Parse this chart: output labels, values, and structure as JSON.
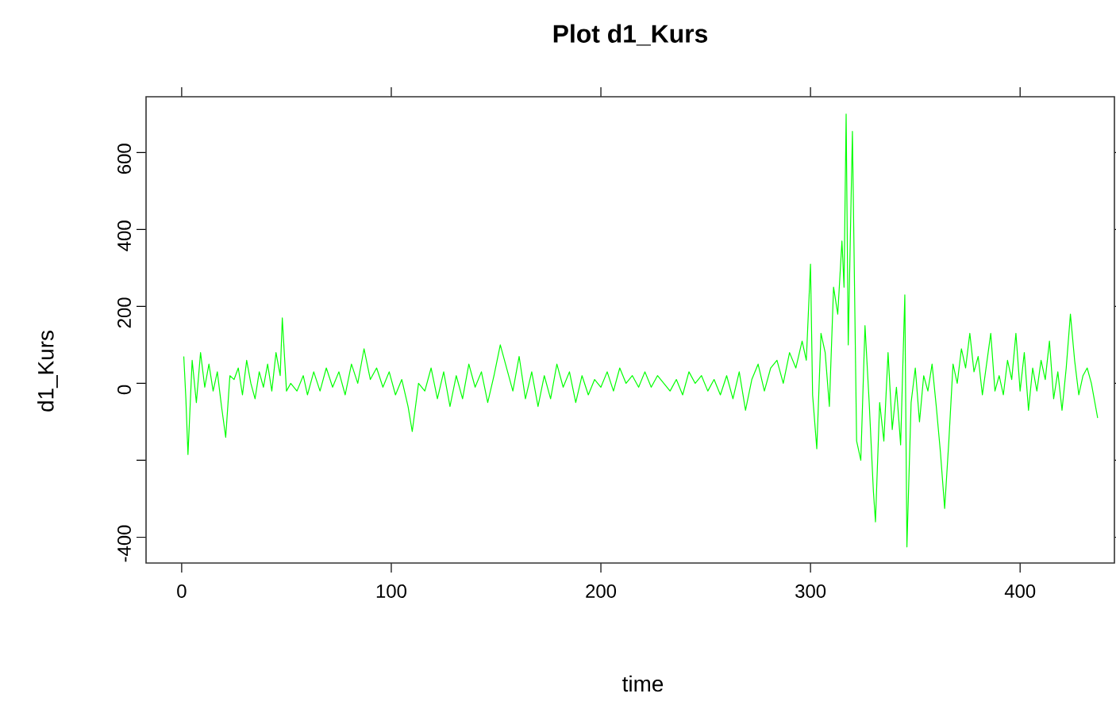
{
  "chart_data": {
    "type": "line",
    "title": "Plot d1_Kurs",
    "xlabel": "time",
    "ylabel": "d1_Kurs",
    "xlim": [
      -17,
      445
    ],
    "ylim": [
      -467,
      745
    ],
    "xticks": [
      0,
      100,
      200,
      300,
      400
    ],
    "yticks": [
      {
        "value": -400,
        "label": "-400"
      },
      {
        "value": -200,
        "label": null
      },
      0,
      200,
      400,
      600
    ],
    "series": [
      {
        "color": "#00ff00",
        "x": [
          1,
          2,
          3,
          5,
          7,
          9,
          11,
          13,
          15,
          17,
          19,
          21,
          23,
          25,
          27,
          29,
          31,
          33,
          35,
          37,
          39,
          41,
          43,
          45,
          47,
          48,
          50,
          52,
          55,
          58,
          60,
          63,
          66,
          69,
          72,
          75,
          78,
          81,
          84,
          87,
          90,
          93,
          96,
          99,
          102,
          105,
          108,
          110,
          113,
          116,
          119,
          122,
          125,
          128,
          131,
          134,
          137,
          140,
          143,
          146,
          149,
          152,
          155,
          158,
          161,
          164,
          167,
          170,
          173,
          176,
          179,
          182,
          185,
          188,
          191,
          194,
          197,
          200,
          203,
          206,
          209,
          212,
          215,
          218,
          221,
          224,
          227,
          230,
          233,
          236,
          239,
          242,
          245,
          248,
          251,
          254,
          257,
          260,
          263,
          266,
          269,
          272,
          275,
          278,
          281,
          284,
          287,
          290,
          293,
          296,
          298,
          300,
          301,
          303,
          305,
          307,
          309,
          311,
          313,
          315,
          316,
          317,
          318,
          320,
          322,
          324,
          326,
          328,
          330,
          331,
          333,
          335,
          337,
          339,
          341,
          343,
          345,
          346,
          348,
          350,
          352,
          354,
          356,
          358,
          360,
          362,
          364,
          366,
          368,
          370,
          372,
          374,
          376,
          378,
          380,
          382,
          384,
          386,
          388,
          390,
          392,
          394,
          396,
          398,
          400,
          402,
          404,
          406,
          408,
          410,
          412,
          414,
          416,
          418,
          420,
          422,
          424,
          426,
          428,
          430,
          432,
          434,
          437
        ],
        "values": [
          70,
          -40,
          -185,
          60,
          -50,
          80,
          -10,
          50,
          -20,
          30,
          -60,
          -140,
          20,
          10,
          40,
          -30,
          60,
          0,
          -40,
          30,
          -10,
          50,
          -20,
          80,
          20,
          170,
          -20,
          0,
          -20,
          20,
          -30,
          30,
          -20,
          40,
          -10,
          30,
          -30,
          50,
          0,
          90,
          10,
          40,
          -10,
          30,
          -30,
          10,
          -60,
          -125,
          0,
          -20,
          40,
          -40,
          30,
          -60,
          20,
          -40,
          50,
          -10,
          30,
          -50,
          20,
          100,
          40,
          -20,
          70,
          -40,
          30,
          -60,
          20,
          -40,
          50,
          -10,
          30,
          -50,
          20,
          -30,
          10,
          -10,
          30,
          -20,
          40,
          0,
          20,
          -10,
          30,
          -10,
          20,
          0,
          -20,
          10,
          -30,
          30,
          0,
          20,
          -20,
          10,
          -30,
          20,
          -40,
          30,
          -70,
          10,
          50,
          -20,
          40,
          60,
          0,
          80,
          40,
          110,
          60,
          310,
          -30,
          -170,
          130,
          80,
          -60,
          250,
          180,
          370,
          250,
          700,
          100,
          655,
          -150,
          -200,
          150,
          -50,
          -280,
          -360,
          -50,
          -150,
          80,
          -120,
          -10,
          -160,
          230,
          -425,
          -50,
          40,
          -100,
          20,
          -20,
          50,
          -60,
          -180,
          -325,
          -150,
          50,
          0,
          90,
          40,
          130,
          30,
          70,
          -30,
          50,
          130,
          -20,
          20,
          -30,
          60,
          10,
          130,
          -20,
          80,
          -70,
          40,
          -20,
          60,
          10,
          110,
          -40,
          30,
          -70,
          40,
          180,
          60,
          -30,
          20,
          40,
          0,
          -90
        ]
      }
    ]
  }
}
